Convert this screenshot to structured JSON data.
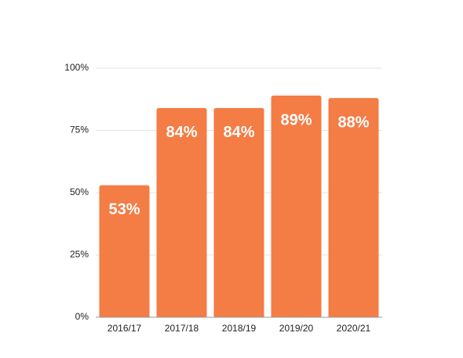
{
  "chart_data": {
    "type": "bar",
    "categories": [
      "2016/17",
      "2017/18",
      "2018/19",
      "2019/20",
      "2020/21"
    ],
    "values": [
      53,
      84,
      84,
      89,
      88
    ],
    "value_labels": [
      "53%",
      "84%",
      "84%",
      "89%",
      "88%"
    ],
    "color": "#f47c45",
    "ylim": [
      0,
      100
    ],
    "yticks": [
      {
        "value": 0,
        "label": "0%"
      },
      {
        "value": 25,
        "label": "25%"
      },
      {
        "value": 50,
        "label": "50%"
      },
      {
        "value": 75,
        "label": "75%"
      },
      {
        "value": 100,
        "label": "100%"
      }
    ],
    "grid": true
  }
}
